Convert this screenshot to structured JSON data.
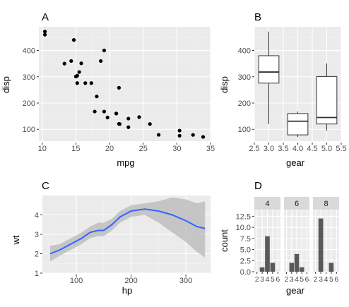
{
  "panels": {
    "a": {
      "label": "A",
      "xlabel": "mpg",
      "ylabel": "disp"
    },
    "b": {
      "label": "B",
      "xlabel": "gear",
      "ylabel": "disp"
    },
    "c": {
      "label": "C",
      "xlabel": "hp",
      "ylabel": "wt"
    },
    "d": {
      "label": "D",
      "xlabel": "gear",
      "ylabel": "count"
    }
  },
  "colors": {
    "panel_bg": "#ebebeb",
    "grid_major": "#ffffff",
    "grid_minor": "#f4f4f4",
    "point": "#000000",
    "box_fill": "#ffffff",
    "box_line": "#333333",
    "smooth_line": "#3366ff",
    "ribbon": "#bcbcbc",
    "bar": "#595959",
    "strip_bg": "#d9d9d9",
    "tick_text": "#4d4d4d"
  },
  "chart_data": [
    {
      "panel": "A",
      "type": "scatter",
      "xlabel": "mpg",
      "ylabel": "disp",
      "xlim": [
        9.5,
        35
      ],
      "ylim": [
        55,
        490
      ],
      "xticks": [
        10,
        15,
        20,
        25,
        30,
        35
      ],
      "yticks": [
        100,
        200,
        300,
        400
      ],
      "grid": true,
      "points": [
        {
          "x": 21.0,
          "y": 160
        },
        {
          "x": 21.0,
          "y": 160
        },
        {
          "x": 22.8,
          "y": 108
        },
        {
          "x": 21.4,
          "y": 258
        },
        {
          "x": 18.7,
          "y": 360
        },
        {
          "x": 18.1,
          "y": 225
        },
        {
          "x": 14.3,
          "y": 360
        },
        {
          "x": 24.4,
          "y": 146.7
        },
        {
          "x": 22.8,
          "y": 140.8
        },
        {
          "x": 19.2,
          "y": 167.6
        },
        {
          "x": 17.8,
          "y": 167.6
        },
        {
          "x": 16.4,
          "y": 275.8
        },
        {
          "x": 17.3,
          "y": 275.8
        },
        {
          "x": 15.2,
          "y": 275.8
        },
        {
          "x": 10.4,
          "y": 472
        },
        {
          "x": 10.4,
          "y": 460
        },
        {
          "x": 14.7,
          "y": 440
        },
        {
          "x": 32.4,
          "y": 78.7
        },
        {
          "x": 30.4,
          "y": 75.7
        },
        {
          "x": 33.9,
          "y": 71.1
        },
        {
          "x": 21.5,
          "y": 120.1
        },
        {
          "x": 15.5,
          "y": 318
        },
        {
          "x": 15.2,
          "y": 304
        },
        {
          "x": 13.3,
          "y": 350
        },
        {
          "x": 19.2,
          "y": 400
        },
        {
          "x": 27.3,
          "y": 79
        },
        {
          "x": 26.0,
          "y": 120.3
        },
        {
          "x": 30.4,
          "y": 95.1
        },
        {
          "x": 15.8,
          "y": 351
        },
        {
          "x": 19.7,
          "y": 145
        },
        {
          "x": 15.0,
          "y": 301
        },
        {
          "x": 21.4,
          "y": 121
        }
      ]
    },
    {
      "panel": "B",
      "type": "box",
      "xlabel": "gear",
      "ylabel": "disp",
      "xlim": [
        2.5,
        5.5
      ],
      "ylim": [
        55,
        490
      ],
      "xticks": [
        2.5,
        3.0,
        3.5,
        4.0,
        4.5,
        5.0,
        5.5
      ],
      "xtick_labels": [
        "2.5",
        "3.0",
        "3.5",
        "4.0",
        "4.5",
        "5.0",
        "5.5"
      ],
      "yticks": [
        100,
        200,
        300,
        400
      ],
      "grid": true,
      "boxes": [
        {
          "x": 3,
          "min": 120.1,
          "q1": 275.8,
          "median": 318,
          "q3": 380,
          "max": 472
        },
        {
          "x": 4,
          "min": 71.1,
          "q1": 78.85,
          "median": 130.9,
          "q3": 160,
          "max": 167.6
        },
        {
          "x": 5,
          "min": 95.1,
          "q1": 120.3,
          "median": 145,
          "q3": 301,
          "max": 351
        }
      ]
    },
    {
      "panel": "C",
      "type": "line",
      "xlabel": "hp",
      "ylabel": "wt",
      "xlim": [
        38,
        345
      ],
      "ylim": [
        1.0,
        5.0
      ],
      "xticks": [
        100,
        200,
        300
      ],
      "yticks": [
        1,
        2,
        3,
        4
      ],
      "grid": true,
      "series": [
        {
          "points": [
            {
              "x": 52,
              "y": 2.0
            },
            {
              "x": 70,
              "y": 2.2
            },
            {
              "x": 90,
              "y": 2.5
            },
            {
              "x": 110,
              "y": 2.8
            },
            {
              "x": 125,
              "y": 3.1
            },
            {
              "x": 140,
              "y": 3.2
            },
            {
              "x": 150,
              "y": 3.2
            },
            {
              "x": 165,
              "y": 3.5
            },
            {
              "x": 180,
              "y": 3.9
            },
            {
              "x": 200,
              "y": 4.2
            },
            {
              "x": 225,
              "y": 4.3
            },
            {
              "x": 250,
              "y": 4.2
            },
            {
              "x": 275,
              "y": 4.0
            },
            {
              "x": 300,
              "y": 3.7
            },
            {
              "x": 320,
              "y": 3.4
            },
            {
              "x": 335,
              "y": 3.3
            }
          ],
          "lower": [
            1.6,
            1.9,
            2.2,
            2.5,
            2.8,
            2.9,
            2.9,
            3.2,
            3.6,
            3.9,
            4.0,
            3.6,
            3.1,
            2.6,
            2.1,
            1.8
          ],
          "upper": [
            2.4,
            2.5,
            2.8,
            3.1,
            3.4,
            3.6,
            3.6,
            3.8,
            4.2,
            4.5,
            4.6,
            4.7,
            4.9,
            4.8,
            4.6,
            4.7
          ]
        }
      ]
    },
    {
      "panel": "D",
      "type": "bar",
      "xlabel": "gear",
      "ylabel": "count",
      "facet_labels": [
        "4",
        "6",
        "8"
      ],
      "xlim": [
        1.5,
        6.5
      ],
      "ylim": [
        0,
        14
      ],
      "xticks": [
        2,
        3,
        4,
        5,
        6
      ],
      "yticks": [
        0.0,
        2.5,
        5.0,
        7.5,
        10.0,
        12.5
      ],
      "ytick_labels": [
        "0.0",
        "2.5",
        "5.0",
        "7.5",
        "10.0",
        "12.5"
      ],
      "grid": true,
      "facets": [
        {
          "label": "4",
          "bars": [
            {
              "x": 3,
              "count": 1
            },
            {
              "x": 4,
              "count": 8
            },
            {
              "x": 5,
              "count": 2
            }
          ]
        },
        {
          "label": "6",
          "bars": [
            {
              "x": 3,
              "count": 2
            },
            {
              "x": 4,
              "count": 4
            },
            {
              "x": 5,
              "count": 1
            }
          ]
        },
        {
          "label": "8",
          "bars": [
            {
              "x": 3,
              "count": 12
            },
            {
              "x": 5,
              "count": 2
            }
          ]
        }
      ]
    }
  ]
}
